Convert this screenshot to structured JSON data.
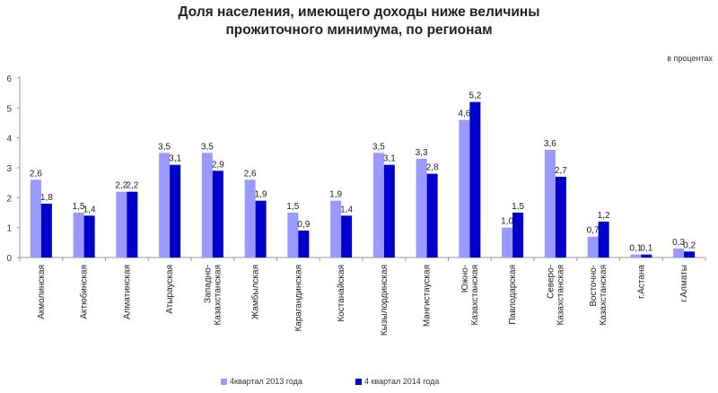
{
  "chart_data": {
    "type": "bar",
    "title_lines": [
      "Доля населения, имеющего доходы ниже величины",
      "прожиточного минимума, по регионам"
    ],
    "units_label": "в процентах",
    "categories": [
      "Акмолинская",
      "Актюбинская",
      "Алматинская",
      "Атырауская",
      "Западно-\nКазахстанская",
      "Жамбылская",
      "Карагандинская",
      "Костанайская",
      "Кызылординская",
      "Мангистауская",
      "Южно-\nКазахстанская",
      "Павлодарская",
      "Северо-\nКазахстанская",
      "Восточно-\nКазахстанская",
      "г.Астана",
      "г.Алматы"
    ],
    "series": [
      {
        "name": "4квартал 2013 года",
        "color": "#9999ff",
        "values": [
          2.6,
          1.5,
          2.2,
          3.5,
          3.5,
          2.6,
          1.5,
          1.9,
          3.5,
          3.3,
          4.6,
          1.0,
          3.6,
          0.7,
          0.1,
          0.3
        ]
      },
      {
        "name": "4 квартал 2014 года",
        "color": "#0000cc",
        "values": [
          1.8,
          1.4,
          2.2,
          3.1,
          2.9,
          1.9,
          0.9,
          1.4,
          3.1,
          2.8,
          5.2,
          1.5,
          2.7,
          1.2,
          0.1,
          0.2
        ]
      }
    ],
    "labels": [
      [
        "2,6",
        "1,5",
        "2,2",
        "3,5",
        "3,5",
        "2,6",
        "1,5",
        "1,9",
        "3,5",
        "3,3",
        "4,6",
        "1,0",
        "3,6",
        "0,7",
        "0,1",
        "0,3"
      ],
      [
        "1,8",
        "1,4",
        "2,2",
        "3,1",
        "2,9",
        "1,9",
        "0,9",
        "1,4",
        "3,1",
        "2,8",
        "5,2",
        "1,5",
        "2,7",
        "1,2",
        "0,1",
        "0,2"
      ]
    ],
    "yticks": [
      "0",
      "1",
      "2",
      "3",
      "4",
      "5",
      "6"
    ],
    "ylim": [
      0,
      6
    ],
    "grid": false,
    "legend_position": "bottom"
  }
}
